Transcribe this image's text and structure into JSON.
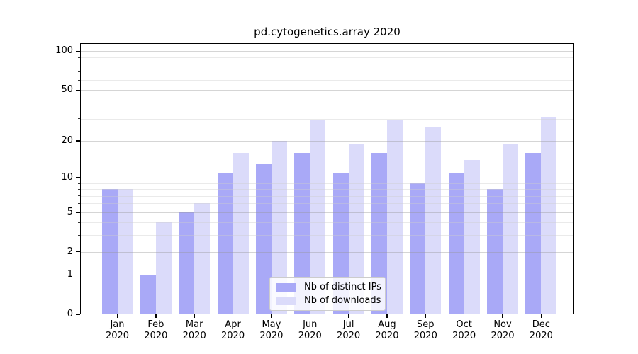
{
  "title": "pd.cytogenetics.array 2020",
  "chart_data": {
    "type": "bar",
    "title": "pd.cytogenetics.array 2020",
    "categories": [
      "Jan 2020",
      "Feb 2020",
      "Mar 2020",
      "Apr 2020",
      "May 2020",
      "Jun 2020",
      "Jul 2020",
      "Aug 2020",
      "Sep 2020",
      "Oct 2020",
      "Nov 2020",
      "Dec 2020"
    ],
    "series": [
      {
        "name": "Nb of distinct IPs",
        "color": "#a9a9f7",
        "values": [
          8,
          1,
          5,
          11,
          13,
          16,
          11,
          16,
          9,
          11,
          8,
          16
        ]
      },
      {
        "name": "Nb of downloads",
        "color": "#dbdbfa",
        "values": [
          8,
          4,
          6,
          16,
          20,
          29,
          19,
          29,
          26,
          14,
          19,
          31
        ]
      }
    ],
    "xlabel": "",
    "ylabel": "",
    "y_axis": {
      "scale": "log1p",
      "major_ticks": [
        0,
        1,
        2,
        5,
        10,
        20,
        50,
        100
      ],
      "minor_gridlines": [
        3,
        4,
        6,
        7,
        8,
        9,
        30,
        40,
        60,
        70,
        80,
        90
      ],
      "ylim": [
        0,
        115
      ]
    },
    "grid": true,
    "legend_position": "bottom-center",
    "colors": {
      "axis": "#000000",
      "major_grid": "#d6d6d6",
      "minor_grid": "#ebebeb",
      "background": "#ffffff"
    }
  }
}
